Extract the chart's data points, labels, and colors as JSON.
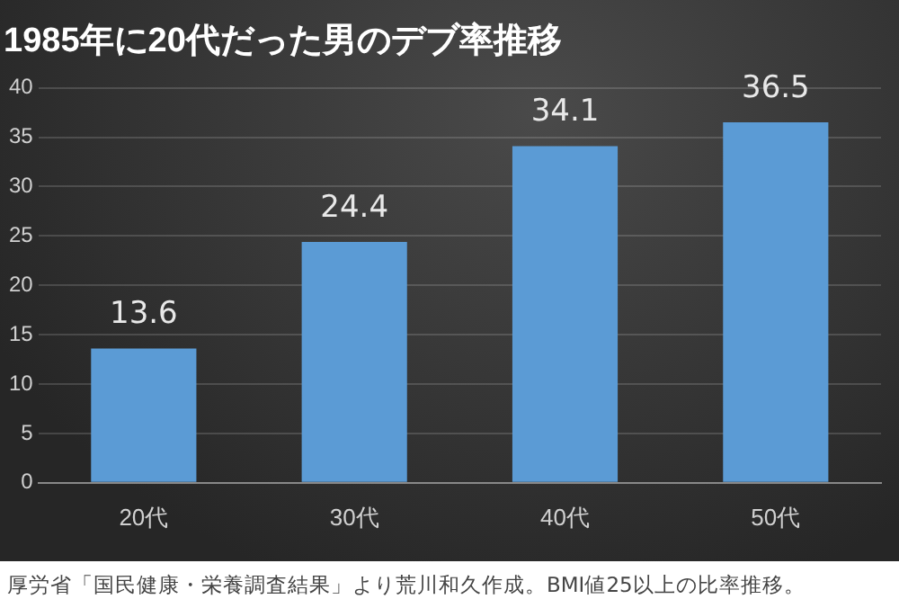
{
  "chart_data": {
    "type": "bar",
    "title": "1985年に20代だった男のデブ率推移",
    "categories": [
      "20代",
      "30代",
      "40代",
      "50代"
    ],
    "values": [
      13.6,
      24.4,
      34.1,
      36.5
    ],
    "color": "#5b9bd5",
    "ylim": [
      0,
      40
    ],
    "yticks": [
      0,
      5,
      10,
      15,
      20,
      25,
      30,
      35,
      40
    ],
    "grid": "y",
    "data_labels": true,
    "annotations": [
      "厚労省「国民健康・栄養調査結果」より荒川和久作成。BMI値25以上の比率推移。"
    ]
  }
}
